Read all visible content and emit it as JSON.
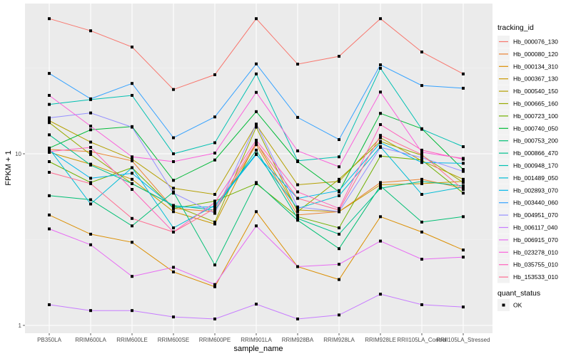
{
  "chart_data": {
    "type": "line",
    "title": "",
    "xlabel": "sample_name",
    "ylabel": "FPKM + 1",
    "y_scale": "log10",
    "ylim": [
      0.9,
      80
    ],
    "y_ticks": [
      1,
      10
    ],
    "y_tick_labels": [
      "1",
      "10"
    ],
    "grid": true,
    "categories": [
      "PB350LA",
      "RRIM600LA",
      "RRIM600LE",
      "RRIM600SE",
      "RRIM600PE",
      "RRIM901LA",
      "RRIM928BA",
      "RRIM928LA",
      "RRIM928LE",
      "RRII105LA_Control",
      "RRII105LA_Stressed"
    ],
    "legend": {
      "placement": "right",
      "color_title": "tracking_id",
      "shape_title": "quant_status",
      "shape_entries": [
        {
          "label": "OK",
          "marker": "square"
        }
      ]
    },
    "series": [
      {
        "name": "Hb_000076_130",
        "color": "#F8766D",
        "values": [
          61.3,
          52.1,
          41.9,
          23.7,
          28.9,
          61.3,
          33.3,
          37.0,
          61.3,
          39.2,
          29.2
        ]
      },
      {
        "name": "Hb_000080_120",
        "color": "#EA8331",
        "values": [
          10.6,
          10.3,
          9.1,
          4.8,
          4.6,
          11.3,
          4.4,
          4.6,
          6.8,
          7.1,
          6.3
        ]
      },
      {
        "name": "Hb_000134_310",
        "color": "#DB8E00",
        "values": [
          4.4,
          3.4,
          3.05,
          2.05,
          1.68,
          4.6,
          2.2,
          1.85,
          4.3,
          3.5,
          2.75
        ]
      },
      {
        "name": "Hb_000367_130",
        "color": "#C99800",
        "values": [
          10.2,
          8.7,
          7.1,
          4.6,
          3.9,
          11.7,
          4.7,
          4.6,
          6.6,
          6.7,
          6.9
        ]
      },
      {
        "name": "Hb_000540_150",
        "color": "#B4A000",
        "values": [
          15.6,
          11.7,
          9.3,
          6.3,
          5.8,
          14.8,
          6.6,
          6.9,
          12.4,
          9.1,
          7.1
        ]
      },
      {
        "name": "Hb_000665_160",
        "color": "#98A900",
        "values": [
          15.2,
          9.9,
          6.7,
          5.0,
          4.0,
          14.3,
          4.6,
          7.1,
          11.8,
          9.8,
          6.8
        ]
      },
      {
        "name": "Hb_000723_100",
        "color": "#70B000",
        "values": [
          9.0,
          6.8,
          8.3,
          4.8,
          5.3,
          6.7,
          4.3,
          3.7,
          9.7,
          9.2,
          5.9
        ]
      },
      {
        "name": "Hb_000740_050",
        "color": "#00BA38",
        "values": [
          10.8,
          13.8,
          14.4,
          7.0,
          9.2,
          17.6,
          9.0,
          6.0,
          17.2,
          14.0,
          8.1
        ]
      },
      {
        "name": "Hb_000753_200",
        "color": "#00BF74",
        "values": [
          5.7,
          5.4,
          3.8,
          6.0,
          2.25,
          6.8,
          4.1,
          2.8,
          6.5,
          4.0,
          4.3
        ]
      },
      {
        "name": "Hb_000866_470",
        "color": "#00C08D",
        "values": [
          12.9,
          8.6,
          6.7,
          5.0,
          4.7,
          10.5,
          4.2,
          3.4,
          6.3,
          6.9,
          6.5
        ]
      },
      {
        "name": "Hb_000948_170",
        "color": "#00C0B2",
        "values": [
          19.4,
          20.7,
          21.9,
          10.0,
          11.6,
          29.2,
          9.1,
          9.6,
          31.5,
          13.9,
          11.0
        ]
      },
      {
        "name": "Hb_001489_050",
        "color": "#00BCD6",
        "values": [
          10.7,
          5.1,
          8.3,
          3.7,
          5.0,
          10.0,
          4.8,
          5.7,
          11.0,
          5.8,
          6.4
        ]
      },
      {
        "name": "Hb_002893_070",
        "color": "#00B6EB",
        "values": [
          10.5,
          7.2,
          7.7,
          4.9,
          4.9,
          9.9,
          5.5,
          6.1,
          11.6,
          8.9,
          8.8
        ]
      },
      {
        "name": "Hb_003440_060",
        "color": "#35A2FF",
        "values": [
          29.4,
          20.9,
          25.7,
          12.4,
          16.4,
          33.4,
          16.3,
          12.1,
          33.0,
          25.0,
          24.1
        ]
      },
      {
        "name": "Hb_004951_070",
        "color": "#9590FF",
        "values": [
          16.2,
          17.3,
          14.3,
          5.9,
          4.5,
          14.9,
          4.9,
          4.6,
          10.9,
          9.5,
          7.9
        ]
      },
      {
        "name": "Hb_006117_040",
        "color": "#C77CFF",
        "values": [
          1.32,
          1.22,
          1.22,
          1.12,
          1.09,
          1.33,
          1.09,
          1.15,
          1.52,
          1.32,
          1.28
        ]
      },
      {
        "name": "Hb_006915_070",
        "color": "#E76BF3",
        "values": [
          3.65,
          2.95,
          1.93,
          2.18,
          1.73,
          3.8,
          2.2,
          2.27,
          3.1,
          2.43,
          2.5
        ]
      },
      {
        "name": "Hb_023278_010",
        "color": "#FA62DB",
        "values": [
          21.9,
          14.5,
          9.6,
          9.0,
          10.1,
          22.8,
          10.4,
          8.4,
          22.9,
          10.2,
          9.4
        ]
      },
      {
        "name": "Hb_035755_010",
        "color": "#FF62BC",
        "values": [
          10.3,
          10.9,
          6.2,
          3.5,
          5.2,
          12.0,
          6.0,
          4.8,
          14.8,
          10.5,
          9.3
        ]
      },
      {
        "name": "Hb_153533_010",
        "color": "#FF6C91",
        "values": [
          7.8,
          6.7,
          4.2,
          3.5,
          4.8,
          11.6,
          5.5,
          4.7,
          12.8,
          9.9,
          6.2
        ]
      }
    ]
  }
}
